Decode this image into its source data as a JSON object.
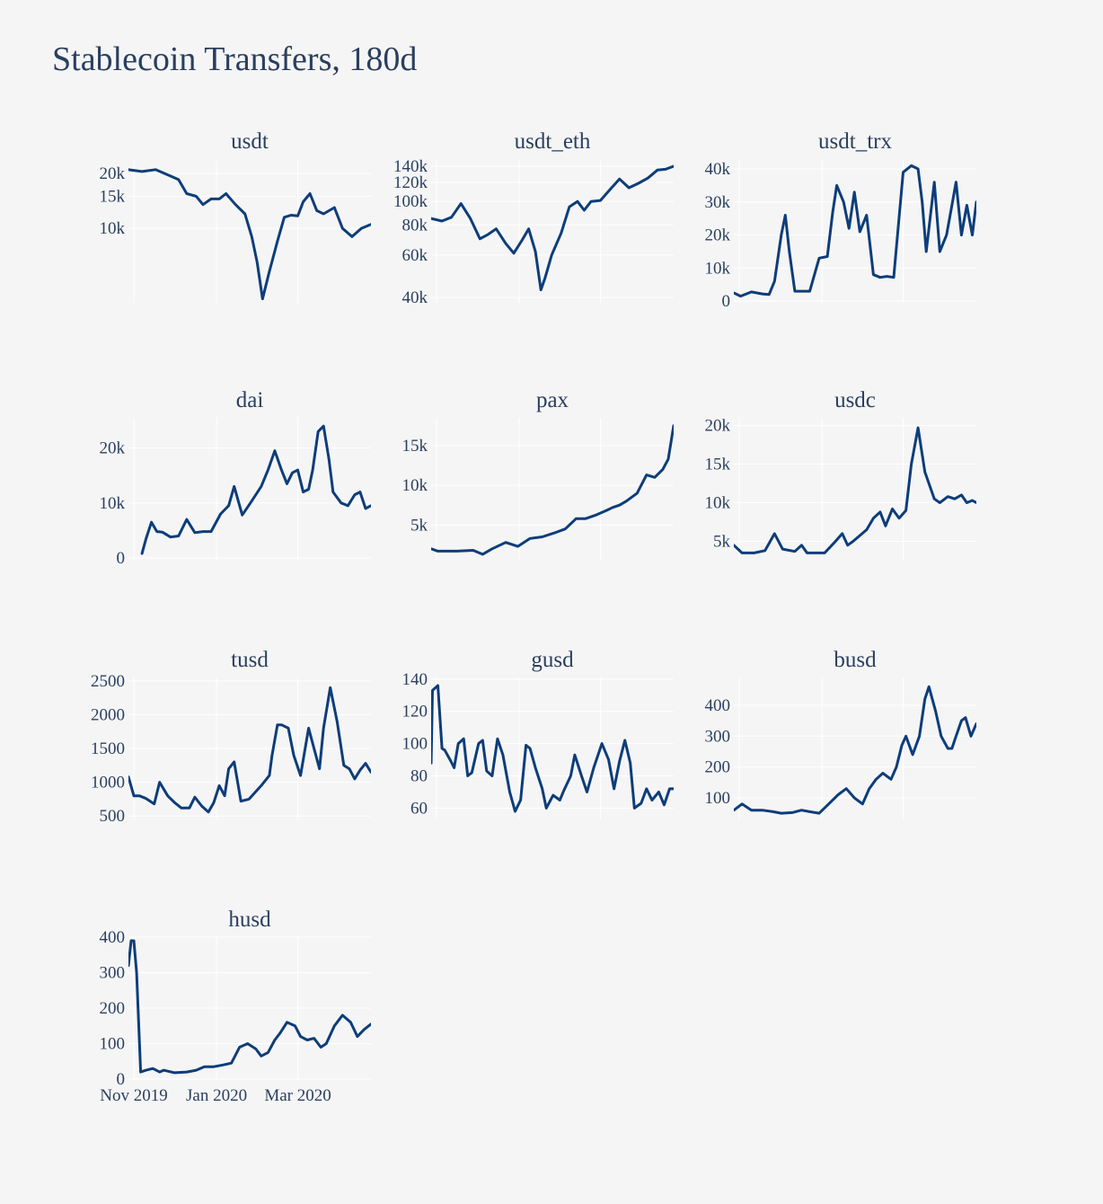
{
  "title": "Stablecoin Transfers, 180d",
  "colors": {
    "line": "#0d3d7a",
    "grid": "#ffffff",
    "background": "#f5f5f5",
    "text": "#2a3f5f"
  },
  "x_axis": {
    "range": [
      "2019-10-28",
      "2020-04-24"
    ],
    "tick_dates": [
      "2019-11-01",
      "2020-01-01",
      "2020-03-01"
    ],
    "tick_labels": [
      "Nov 2019",
      "Jan 2020",
      "Mar 2020"
    ]
  },
  "chart_data": [
    {
      "type": "line",
      "title": "usdt",
      "yscale": "log",
      "ylim": [
        3900,
        24000
      ],
      "yticks": [
        10000,
        15000,
        20000
      ],
      "ytick_labels": [
        "10k",
        "15k",
        "20k"
      ],
      "x": [
        "2019-10-28",
        "2019-11-07",
        "2019-11-17",
        "2019-11-27",
        "2019-12-04",
        "2019-12-10",
        "2019-12-17",
        "2019-12-22",
        "2019-12-28",
        "2020-01-03",
        "2020-01-08",
        "2020-01-15",
        "2020-01-22",
        "2020-01-27",
        "2020-01-31",
        "2020-02-04",
        "2020-02-09",
        "2020-02-15",
        "2020-02-20",
        "2020-02-25",
        "2020-03-01",
        "2020-03-05",
        "2020-03-10",
        "2020-03-15",
        "2020-03-20",
        "2020-03-28",
        "2020-04-03",
        "2020-04-10",
        "2020-04-17",
        "2020-04-24"
      ],
      "y": [
        21000,
        20500,
        21000,
        19500,
        18500,
        15500,
        15000,
        13500,
        14500,
        14500,
        15500,
        13500,
        12000,
        9000,
        6500,
        4100,
        5800,
        8500,
        11500,
        11800,
        11700,
        14000,
        15500,
        12500,
        12000,
        13000,
        10000,
        9000,
        10000,
        10500
      ]
    },
    {
      "type": "line",
      "title": "usdt_eth",
      "yscale": "log",
      "ylim": [
        38000,
        150000
      ],
      "yticks": [
        40000,
        60000,
        80000,
        100000,
        120000,
        140000
      ],
      "ytick_labels": [
        "40k",
        "60k",
        "80k",
        "100k",
        "120k",
        "140k"
      ],
      "x": [
        "2019-10-28",
        "2019-11-05",
        "2019-11-12",
        "2019-11-19",
        "2019-11-26",
        "2019-12-03",
        "2019-12-09",
        "2019-12-15",
        "2019-12-22",
        "2019-12-28",
        "2020-01-03",
        "2020-01-08",
        "2020-01-13",
        "2020-01-17",
        "2020-01-20",
        "2020-01-25",
        "2020-02-01",
        "2020-02-07",
        "2020-02-13",
        "2020-02-18",
        "2020-02-23",
        "2020-03-01",
        "2020-03-08",
        "2020-03-15",
        "2020-03-22",
        "2020-03-29",
        "2020-04-05",
        "2020-04-12",
        "2020-04-18",
        "2020-04-24"
      ],
      "y": [
        85000,
        83000,
        86000,
        98000,
        85000,
        70000,
        73000,
        77000,
        67000,
        61000,
        69000,
        77000,
        62000,
        43000,
        48000,
        60000,
        74000,
        95000,
        100000,
        92000,
        100000,
        101000,
        112000,
        124000,
        114000,
        119000,
        125000,
        135000,
        136000,
        140000
      ]
    },
    {
      "type": "line",
      "title": "usdt_trx",
      "yscale": "linear",
      "ylim": [
        -500,
        43000
      ],
      "yticks": [
        0,
        10000,
        20000,
        30000,
        40000
      ],
      "ytick_labels": [
        "0",
        "10k",
        "20k",
        "30k",
        "40k"
      ],
      "x": [
        "2019-10-28",
        "2019-11-02",
        "2019-11-10",
        "2019-11-18",
        "2019-11-23",
        "2019-11-27",
        "2019-12-02",
        "2019-12-05",
        "2019-12-08",
        "2019-12-12",
        "2019-12-20",
        "2019-12-23",
        "2019-12-30",
        "2020-01-05",
        "2020-01-09",
        "2020-01-12",
        "2020-01-17",
        "2020-01-21",
        "2020-01-25",
        "2020-01-29",
        "2020-02-03",
        "2020-02-08",
        "2020-02-13",
        "2020-02-18",
        "2020-02-23",
        "2020-03-01",
        "2020-03-07",
        "2020-03-12",
        "2020-03-15",
        "2020-03-18",
        "2020-03-24",
        "2020-03-28",
        "2020-04-02",
        "2020-04-06",
        "2020-04-09",
        "2020-04-13",
        "2020-04-17",
        "2020-04-21",
        "2020-04-24"
      ],
      "y": [
        2500,
        1500,
        2800,
        2200,
        2000,
        6000,
        20000,
        26000,
        15000,
        3000,
        3000,
        3000,
        13000,
        13500,
        27000,
        35000,
        30000,
        22000,
        33000,
        21000,
        26000,
        8000,
        7200,
        7500,
        7200,
        39000,
        41000,
        40000,
        30000,
        15000,
        36000,
        15000,
        20000,
        29000,
        36000,
        20000,
        29000,
        20000,
        30000
      ]
    },
    {
      "type": "line",
      "title": "dai",
      "yscale": "linear",
      "ylim": [
        -500,
        25500
      ],
      "yticks": [
        0,
        10000,
        20000
      ],
      "ytick_labels": [
        "0",
        "10k",
        "20k"
      ],
      "x": [
        "2019-11-07",
        "2019-11-10",
        "2019-11-14",
        "2019-11-18",
        "2019-11-22",
        "2019-11-28",
        "2019-12-04",
        "2019-12-10",
        "2019-12-16",
        "2019-12-22",
        "2019-12-28",
        "2020-01-04",
        "2020-01-10",
        "2020-01-14",
        "2020-01-20",
        "2020-01-26",
        "2020-02-03",
        "2020-02-08",
        "2020-02-13",
        "2020-02-18",
        "2020-02-22",
        "2020-02-26",
        "2020-03-01",
        "2020-03-05",
        "2020-03-09",
        "2020-03-12",
        "2020-03-16",
        "2020-03-20",
        "2020-03-24",
        "2020-03-27",
        "2020-04-02",
        "2020-04-07",
        "2020-04-12",
        "2020-04-16",
        "2020-04-20",
        "2020-04-24"
      ],
      "y": [
        800,
        3500,
        6500,
        4800,
        4700,
        3800,
        4000,
        7000,
        4600,
        4800,
        4800,
        8000,
        9500,
        13000,
        7800,
        10000,
        13000,
        16000,
        19500,
        16000,
        13500,
        15500,
        16000,
        12000,
        12500,
        16000,
        23000,
        24000,
        18000,
        12000,
        10000,
        9500,
        11500,
        12000,
        9000,
        9500
      ]
    },
    {
      "type": "line",
      "title": "pax",
      "yscale": "linear",
      "ylim": [
        500,
        18500
      ],
      "yticks": [
        5000,
        10000,
        15000
      ],
      "ytick_labels": [
        "5k",
        "10k",
        "15k"
      ],
      "x": [
        "2019-10-28",
        "2019-11-02",
        "2019-11-16",
        "2019-11-28",
        "2019-12-05",
        "2019-12-12",
        "2019-12-22",
        "2019-12-31",
        "2020-01-09",
        "2020-01-18",
        "2020-01-27",
        "2020-02-04",
        "2020-02-12",
        "2020-02-19",
        "2020-02-26",
        "2020-03-05",
        "2020-03-10",
        "2020-03-15",
        "2020-03-20",
        "2020-03-28",
        "2020-04-04",
        "2020-04-10",
        "2020-04-16",
        "2020-04-20",
        "2020-04-24"
      ],
      "y": [
        2000,
        1700,
        1700,
        1800,
        1300,
        2000,
        2800,
        2300,
        3300,
        3500,
        4000,
        4500,
        5800,
        5800,
        6200,
        6800,
        7200,
        7500,
        8000,
        9000,
        11300,
        11000,
        12000,
        13300,
        17500
      ]
    },
    {
      "type": "line",
      "title": "usdc",
      "yscale": "linear",
      "ylim": [
        2500,
        21000
      ],
      "yticks": [
        5000,
        10000,
        15000,
        20000
      ],
      "ytick_labels": [
        "5k",
        "10k",
        "15k",
        "20k"
      ],
      "x": [
        "2019-10-28",
        "2019-11-03",
        "2019-11-12",
        "2019-11-20",
        "2019-11-27",
        "2019-12-03",
        "2019-12-12",
        "2019-12-17",
        "2019-12-21",
        "2019-12-26",
        "2020-01-03",
        "2020-01-10",
        "2020-01-16",
        "2020-01-20",
        "2020-01-24",
        "2020-02-03",
        "2020-02-08",
        "2020-02-13",
        "2020-02-17",
        "2020-02-22",
        "2020-02-27",
        "2020-03-03",
        "2020-03-07",
        "2020-03-12",
        "2020-03-17",
        "2020-03-24",
        "2020-03-28",
        "2020-04-03",
        "2020-04-08",
        "2020-04-13",
        "2020-04-17",
        "2020-04-21",
        "2020-04-24"
      ],
      "y": [
        4500,
        3500,
        3500,
        3800,
        6000,
        4000,
        3700,
        4500,
        3500,
        3500,
        3500,
        4800,
        6000,
        4500,
        5000,
        6500,
        8000,
        8800,
        7000,
        9200,
        8000,
        9000,
        15000,
        19700,
        14000,
        10500,
        10000,
        10800,
        10500,
        11000,
        10000,
        10300,
        10000
      ]
    },
    {
      "type": "line",
      "title": "tusd",
      "yscale": "linear",
      "ylim": [
        450,
        2550
      ],
      "yticks": [
        500,
        1000,
        1500,
        2000,
        2500
      ],
      "ytick_labels": [
        "500",
        "1000",
        "1500",
        "2000",
        "2500"
      ],
      "x": [
        "2019-10-28",
        "2019-11-01",
        "2019-11-05",
        "2019-11-10",
        "2019-11-16",
        "2019-11-20",
        "2019-11-26",
        "2019-12-01",
        "2019-12-06",
        "2019-12-12",
        "2019-12-16",
        "2019-12-21",
        "2019-12-26",
        "2019-12-30",
        "2020-01-03",
        "2020-01-07",
        "2020-01-10",
        "2020-01-14",
        "2020-01-19",
        "2020-01-25",
        "2020-02-03",
        "2020-02-09",
        "2020-02-11",
        "2020-02-15",
        "2020-02-18",
        "2020-02-23",
        "2020-02-27",
        "2020-03-03",
        "2020-03-09",
        "2020-03-13",
        "2020-03-17",
        "2020-03-20",
        "2020-03-25",
        "2020-03-30",
        "2020-04-04",
        "2020-04-08",
        "2020-04-12",
        "2020-04-16",
        "2020-04-20",
        "2020-04-24"
      ],
      "y": [
        1080,
        800,
        800,
        760,
        680,
        1000,
        800,
        700,
        620,
        620,
        780,
        650,
        560,
        700,
        950,
        800,
        1200,
        1300,
        720,
        750,
        950,
        1100,
        1400,
        1850,
        1850,
        1800,
        1400,
        1100,
        1800,
        1500,
        1200,
        1800,
        2400,
        1900,
        1250,
        1200,
        1050,
        1180,
        1280,
        1150
      ]
    },
    {
      "type": "line",
      "title": "gusd",
      "yscale": "linear",
      "ylim": [
        53,
        141
      ],
      "yticks": [
        60,
        80,
        100,
        120,
        140
      ],
      "ytick_labels": [
        "60",
        "80",
        "100",
        "120",
        "140"
      ],
      "x": [
        "2019-10-28",
        "2019-10-29",
        "2019-11-02",
        "2019-11-05",
        "2019-11-07",
        "2019-11-11",
        "2019-11-14",
        "2019-11-17",
        "2019-11-21",
        "2019-11-24",
        "2019-11-27",
        "2019-12-02",
        "2019-12-05",
        "2019-12-08",
        "2019-12-12",
        "2019-12-16",
        "2019-12-20",
        "2019-12-25",
        "2019-12-29",
        "2020-01-02",
        "2020-01-06",
        "2020-01-09",
        "2020-01-13",
        "2020-01-18",
        "2020-01-21",
        "2020-01-26",
        "2020-01-31",
        "2020-02-03",
        "2020-02-08",
        "2020-02-11",
        "2020-02-16",
        "2020-02-20",
        "2020-02-25",
        "2020-03-02",
        "2020-03-07",
        "2020-03-11",
        "2020-03-15",
        "2020-03-19",
        "2020-03-23",
        "2020-03-26",
        "2020-03-31",
        "2020-04-04",
        "2020-04-08",
        "2020-04-13",
        "2020-04-17",
        "2020-04-21",
        "2020-04-24"
      ],
      "y": [
        88,
        133,
        136,
        97,
        96,
        90,
        85,
        100,
        103,
        80,
        82,
        100,
        102,
        83,
        80,
        103,
        93,
        70,
        58,
        65,
        99,
        97,
        85,
        72,
        60,
        68,
        65,
        71,
        80,
        93,
        80,
        70,
        85,
        100,
        90,
        72,
        89,
        102,
        88,
        60,
        63,
        72,
        65,
        70,
        62,
        72,
        72
      ]
    },
    {
      "type": "line",
      "title": "busd",
      "yscale": "linear",
      "ylim": [
        30,
        490
      ],
      "yticks": [
        100,
        200,
        300,
        400
      ],
      "ytick_labels": [
        "100",
        "200",
        "300",
        "400"
      ],
      "x": [
        "2019-10-28",
        "2019-11-03",
        "2019-11-10",
        "2019-11-18",
        "2019-11-26",
        "2019-12-02",
        "2019-12-10",
        "2019-12-17",
        "2019-12-23",
        "2019-12-30",
        "2020-01-06",
        "2020-01-13",
        "2020-01-19",
        "2020-01-25",
        "2020-01-31",
        "2020-02-05",
        "2020-02-10",
        "2020-02-15",
        "2020-02-21",
        "2020-02-25",
        "2020-02-29",
        "2020-03-03",
        "2020-03-08",
        "2020-03-13",
        "2020-03-17",
        "2020-03-20",
        "2020-03-25",
        "2020-03-29",
        "2020-04-03",
        "2020-04-06",
        "2020-04-09",
        "2020-04-13",
        "2020-04-16",
        "2020-04-20",
        "2020-04-24"
      ],
      "y": [
        60,
        80,
        60,
        60,
        55,
        50,
        52,
        60,
        55,
        50,
        80,
        110,
        130,
        100,
        80,
        130,
        160,
        180,
        160,
        200,
        270,
        300,
        240,
        300,
        420,
        460,
        380,
        300,
        260,
        260,
        300,
        350,
        360,
        300,
        340
      ]
    },
    {
      "type": "line",
      "title": "husd",
      "yscale": "linear",
      "ylim": [
        0,
        400
      ],
      "yticks": [
        0,
        100,
        200,
        300,
        400
      ],
      "ytick_labels": [
        "0",
        "100",
        "200",
        "300",
        "400"
      ],
      "x": [
        "2019-10-28",
        "2019-10-30",
        "2019-11-01",
        "2019-11-03",
        "2019-11-06",
        "2019-11-10",
        "2019-11-15",
        "2019-11-20",
        "2019-11-23",
        "2019-12-01",
        "2019-12-10",
        "2019-12-17",
        "2019-12-23",
        "2019-12-30",
        "2020-01-06",
        "2020-01-12",
        "2020-01-18",
        "2020-01-24",
        "2020-01-30",
        "2020-02-03",
        "2020-02-08",
        "2020-02-13",
        "2020-02-17",
        "2020-02-22",
        "2020-02-28",
        "2020-03-03",
        "2020-03-08",
        "2020-03-13",
        "2020-03-18",
        "2020-03-22",
        "2020-03-28",
        "2020-04-03",
        "2020-04-09",
        "2020-04-14",
        "2020-04-19",
        "2020-04-24"
      ],
      "y": [
        320,
        390,
        390,
        300,
        20,
        25,
        30,
        20,
        25,
        18,
        20,
        25,
        35,
        35,
        40,
        45,
        90,
        100,
        85,
        65,
        75,
        110,
        130,
        160,
        150,
        120,
        110,
        115,
        90,
        100,
        150,
        180,
        160,
        120,
        140,
        155
      ]
    }
  ]
}
